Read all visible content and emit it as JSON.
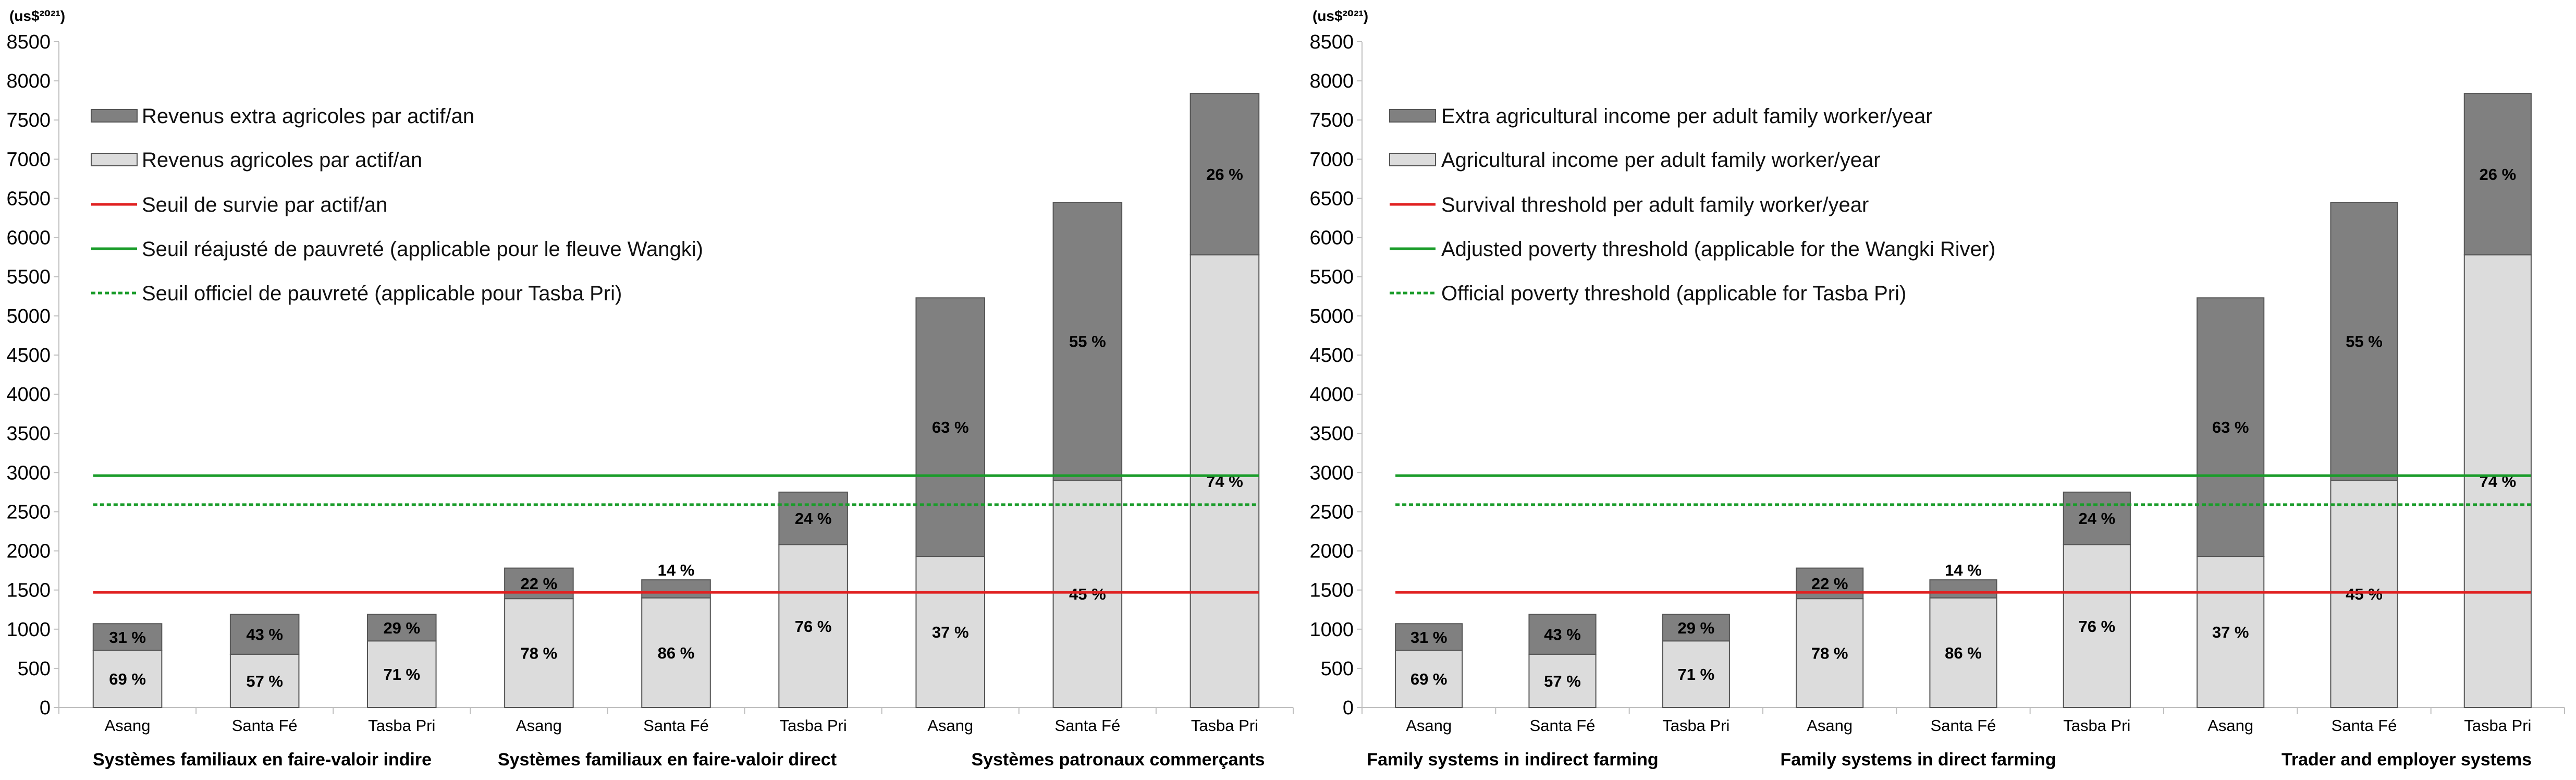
{
  "chart_data": [
    {
      "type": "bar",
      "stacked": true,
      "unit_label": "(us$²⁰²¹)",
      "ylim": [
        0,
        8500
      ],
      "yticks": [
        0,
        500,
        1000,
        1500,
        2000,
        2500,
        3000,
        3500,
        4000,
        4500,
        5000,
        5500,
        6000,
        6500,
        7000,
        7500,
        8000,
        8500
      ],
      "grid": false,
      "legend_position": "top-left",
      "categories": [
        "Asang",
        "Santa Fé",
        "Tasba Pri",
        "Asang",
        "Santa Fé",
        "Tasba Pri",
        "Asang",
        "Santa Fé",
        "Tasba Pri"
      ],
      "groups": [
        {
          "label": "Systèmes familiaux en faire-valoir indire",
          "categories": [
            "Asang",
            "Santa Fé",
            "Tasba Pri"
          ]
        },
        {
          "label": "Systèmes familiaux en faire-valoir direct",
          "categories": [
            "Asang",
            "Santa Fé",
            "Tasba Pri"
          ]
        },
        {
          "label": "Systèmes patronaux commerçants",
          "categories": [
            "Asang",
            "Santa Fé",
            "Tasba Pri"
          ]
        }
      ],
      "series": [
        {
          "name": "Revenus agricoles par actif/an",
          "color": "#dcdcdc",
          "values": [
            730,
            680,
            850,
            1390,
            1400,
            2080,
            1930,
            2900,
            5780
          ],
          "labels": [
            "69 %",
            "57 %",
            "71 %",
            "78 %",
            "86 %",
            "76 %",
            "37 %",
            "45 %",
            "74 %"
          ]
        },
        {
          "name": "Revenus extra agricoles par actif/an",
          "color": "#808080",
          "values": [
            340,
            510,
            340,
            390,
            230,
            670,
            3300,
            3550,
            2060
          ],
          "labels": [
            "31 %",
            "43 %",
            "29 %",
            "22 %",
            "14 %",
            "24 %",
            "63 %",
            "55 %",
            "26 %"
          ]
        }
      ],
      "lines": [
        {
          "name": "Seuil de survie par actif/an",
          "value": 1470,
          "color": "#e02020",
          "style": "solid"
        },
        {
          "name": "Seuil réajusté de pauvreté (applicable pour le fleuve Wangki)",
          "value": 2960,
          "color": "#1a9c2a",
          "style": "solid"
        },
        {
          "name": "Seuil officiel de pauvreté (applicable pour Tasba Pri)",
          "value": 2590,
          "color": "#1a9c2a",
          "style": "dotted"
        }
      ]
    },
    {
      "type": "bar",
      "stacked": true,
      "unit_label": "(us$²⁰²¹)",
      "ylim": [
        0,
        8500
      ],
      "yticks": [
        0,
        500,
        1000,
        1500,
        2000,
        2500,
        3000,
        3500,
        4000,
        4500,
        5000,
        5500,
        6000,
        6500,
        7000,
        7500,
        8000,
        8500
      ],
      "grid": false,
      "legend_position": "top-left",
      "categories": [
        "Asang",
        "Santa Fé",
        "Tasba Pri",
        "Asang",
        "Santa Fé",
        "Tasba Pri",
        "Asang",
        "Santa Fé",
        "Tasba Pri"
      ],
      "groups": [
        {
          "label": "Family systems in indirect farming",
          "categories": [
            "Asang",
            "Santa Fé",
            "Tasba Pri"
          ]
        },
        {
          "label": "Family systems in direct farming",
          "categories": [
            "Asang",
            "Santa Fé",
            "Tasba Pri"
          ]
        },
        {
          "label": "Trader and employer systems",
          "categories": [
            "Asang",
            "Santa Fé",
            "Tasba Pri"
          ]
        }
      ],
      "series": [
        {
          "name": "Agricultural income per adult family worker/year",
          "color": "#dcdcdc",
          "values": [
            730,
            680,
            850,
            1390,
            1400,
            2080,
            1930,
            2900,
            5780
          ],
          "labels": [
            "69 %",
            "57 %",
            "71 %",
            "78 %",
            "86 %",
            "76 %",
            "37 %",
            "45 %",
            "74 %"
          ]
        },
        {
          "name": "Extra agricultural income per adult family worker/year",
          "color": "#808080",
          "values": [
            340,
            510,
            340,
            390,
            230,
            670,
            3300,
            3550,
            2060
          ],
          "labels": [
            "31 %",
            "43 %",
            "29 %",
            "22 %",
            "14 %",
            "24 %",
            "63 %",
            "55 %",
            "26 %"
          ]
        }
      ],
      "lines": [
        {
          "name": "Survival threshold per adult family worker/year",
          "value": 1470,
          "color": "#e02020",
          "style": "solid"
        },
        {
          "name": "Adjusted poverty threshold (applicable for the Wangki River)",
          "value": 2960,
          "color": "#1a9c2a",
          "style": "solid"
        },
        {
          "name": "Official poverty threshold (applicable for Tasba Pri)",
          "value": 2590,
          "color": "#1a9c2a",
          "style": "dotted"
        }
      ]
    }
  ]
}
